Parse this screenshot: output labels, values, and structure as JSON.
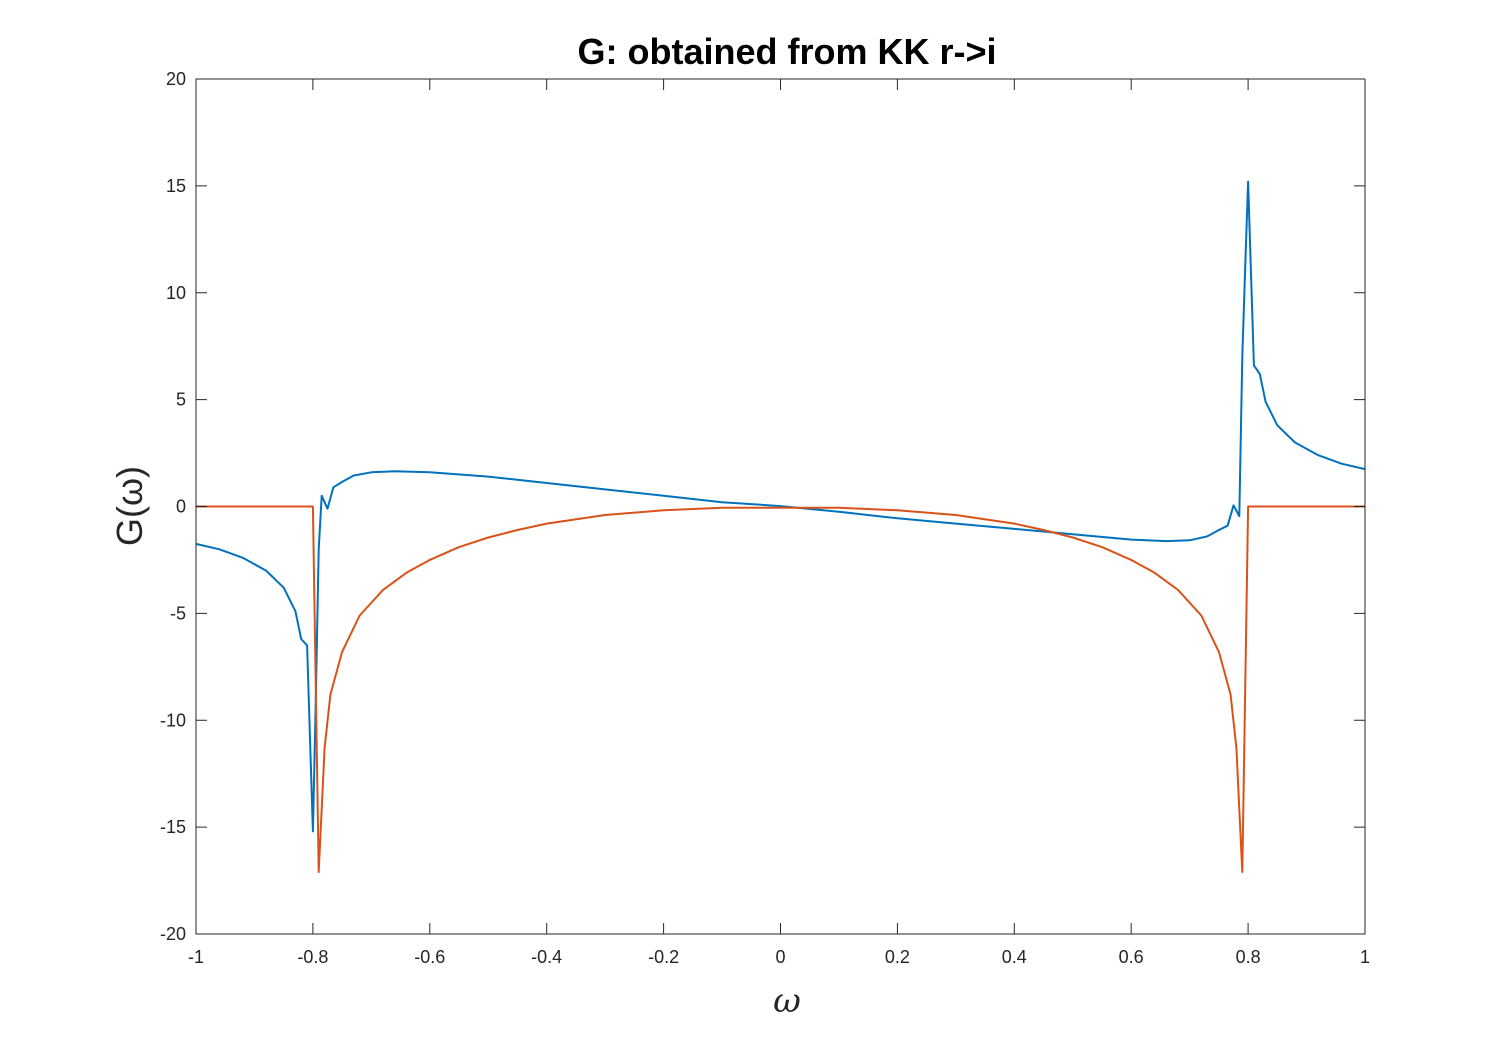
{
  "chart_data": {
    "type": "line",
    "title": "G: obtained from KK r->i",
    "xlabel": "ω",
    "ylabel": "G(ω)",
    "xlim": [
      -1,
      1
    ],
    "ylim": [
      -20,
      20
    ],
    "xticks": [
      -1,
      -0.8,
      -0.6,
      -0.4,
      -0.2,
      0,
      0.2,
      0.4,
      0.6,
      0.8,
      1
    ],
    "xtick_labels": [
      "-1",
      "-0.8",
      "-0.6",
      "-0.4",
      "-0.2",
      "0",
      "0.2",
      "0.4",
      "0.6",
      "0.8",
      "1"
    ],
    "yticks": [
      -20,
      -15,
      -10,
      -5,
      0,
      5,
      10,
      15,
      20
    ],
    "ytick_labels": [
      "-20",
      "-15",
      "-10",
      "-5",
      "0",
      "5",
      "10",
      "15",
      "20"
    ],
    "grid": false,
    "legend": "none",
    "series": [
      {
        "color": "#0072BD",
        "points": [
          [
            -1.0,
            -1.75
          ],
          [
            -0.96,
            -2.0
          ],
          [
            -0.92,
            -2.4
          ],
          [
            -0.88,
            -3.0
          ],
          [
            -0.85,
            -3.8
          ],
          [
            -0.83,
            -4.9
          ],
          [
            -0.82,
            -6.2
          ],
          [
            -0.81,
            -6.5
          ],
          [
            -0.8,
            -15.2
          ],
          [
            -0.795,
            -9.0
          ],
          [
            -0.79,
            -2.0
          ],
          [
            -0.785,
            0.5
          ],
          [
            -0.775,
            -0.1
          ],
          [
            -0.765,
            0.9
          ],
          [
            -0.75,
            1.15
          ],
          [
            -0.73,
            1.45
          ],
          [
            -0.7,
            1.6
          ],
          [
            -0.66,
            1.65
          ],
          [
            -0.6,
            1.6
          ],
          [
            -0.5,
            1.4
          ],
          [
            -0.4,
            1.1
          ],
          [
            -0.3,
            0.8
          ],
          [
            -0.2,
            0.5
          ],
          [
            -0.1,
            0.2
          ],
          [
            0.0,
            0.02
          ],
          [
            0.1,
            -0.25
          ],
          [
            0.2,
            -0.55
          ],
          [
            0.3,
            -0.8
          ],
          [
            0.4,
            -1.05
          ],
          [
            0.5,
            -1.3
          ],
          [
            0.6,
            -1.55
          ],
          [
            0.66,
            -1.62
          ],
          [
            0.7,
            -1.58
          ],
          [
            0.73,
            -1.4
          ],
          [
            0.75,
            -1.1
          ],
          [
            0.765,
            -0.9
          ],
          [
            0.775,
            0.05
          ],
          [
            0.785,
            -0.45
          ],
          [
            0.79,
            7.0
          ],
          [
            0.795,
            11.2
          ],
          [
            0.8,
            15.2
          ],
          [
            0.81,
            6.6
          ],
          [
            0.82,
            6.2
          ],
          [
            0.83,
            4.9
          ],
          [
            0.85,
            3.8
          ],
          [
            0.88,
            3.0
          ],
          [
            0.92,
            2.4
          ],
          [
            0.96,
            2.0
          ],
          [
            1.0,
            1.75
          ]
        ]
      },
      {
        "color": "#D95319",
        "points": [
          [
            -1.0,
            0.0
          ],
          [
            -0.8,
            0.0
          ],
          [
            -0.79,
            -17.1
          ],
          [
            -0.78,
            -11.3
          ],
          [
            -0.77,
            -8.8
          ],
          [
            -0.75,
            -6.8
          ],
          [
            -0.72,
            -5.1
          ],
          [
            -0.68,
            -3.9
          ],
          [
            -0.64,
            -3.1
          ],
          [
            -0.6,
            -2.5
          ],
          [
            -0.55,
            -1.9
          ],
          [
            -0.5,
            -1.45
          ],
          [
            -0.45,
            -1.1
          ],
          [
            -0.4,
            -0.8
          ],
          [
            -0.3,
            -0.4
          ],
          [
            -0.2,
            -0.18
          ],
          [
            -0.1,
            -0.06
          ],
          [
            0.0,
            -0.06
          ],
          [
            0.1,
            -0.06
          ],
          [
            0.2,
            -0.18
          ],
          [
            0.3,
            -0.4
          ],
          [
            0.4,
            -0.8
          ],
          [
            0.45,
            -1.1
          ],
          [
            0.5,
            -1.45
          ],
          [
            0.55,
            -1.9
          ],
          [
            0.6,
            -2.5
          ],
          [
            0.64,
            -3.1
          ],
          [
            0.68,
            -3.9
          ],
          [
            0.72,
            -5.1
          ],
          [
            0.75,
            -6.8
          ],
          [
            0.77,
            -8.8
          ],
          [
            0.78,
            -11.3
          ],
          [
            0.79,
            -17.1
          ],
          [
            0.8,
            0.0
          ],
          [
            1.0,
            0.0
          ]
        ]
      }
    ]
  }
}
